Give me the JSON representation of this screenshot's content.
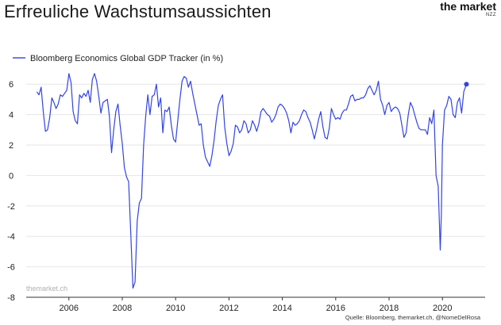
{
  "title": "Erfreuliche Wachstumsaussichten",
  "logo": {
    "main": "the market",
    "sub": "NZZ"
  },
  "watermark": "themarket.ch",
  "source": "Quelle: Bloomberg, themarket.ch, @NomeDelRosa",
  "colors": {
    "line": "#3344e0",
    "grid": "#e6e6e6",
    "axis": "#333333"
  },
  "chart_data": {
    "type": "line",
    "title": "Erfreuliche Wachstumsaussichten",
    "xlabel": "",
    "ylabel": "",
    "legend": {
      "placement": "top-left"
    },
    "grid": true,
    "xlim": [
      2004.4,
      2021.6
    ],
    "ylim": [
      -8,
      7
    ],
    "xticks": [
      2006,
      2008,
      2010,
      2012,
      2014,
      2016,
      2018,
      2020
    ],
    "xtick_labels": [
      "2006",
      "2008",
      "2010",
      "2012",
      "2014",
      "2016",
      "2018",
      "2020"
    ],
    "yticks": [
      -8,
      -6,
      -4,
      -2,
      0,
      2,
      4,
      6
    ],
    "ytick_labels": [
      "-8",
      "-6",
      "-4",
      "-2",
      "0",
      "2",
      "4",
      "6"
    ],
    "series": [
      {
        "name": "Bloomberg Economics Global GDP Tracker (in %)",
        "points": [
          [
            2004.8,
            5.5
          ],
          [
            2004.88,
            5.3
          ],
          [
            2004.96,
            5.8
          ],
          [
            2005.04,
            4.2
          ],
          [
            2005.12,
            2.9
          ],
          [
            2005.2,
            3.0
          ],
          [
            2005.28,
            3.8
          ],
          [
            2005.36,
            5.1
          ],
          [
            2005.44,
            4.8
          ],
          [
            2005.52,
            4.4
          ],
          [
            2005.6,
            4.7
          ],
          [
            2005.68,
            5.3
          ],
          [
            2005.76,
            5.2
          ],
          [
            2005.84,
            5.4
          ],
          [
            2005.92,
            5.6
          ],
          [
            2006.0,
            6.7
          ],
          [
            2006.08,
            6.1
          ],
          [
            2006.16,
            4.2
          ],
          [
            2006.24,
            3.6
          ],
          [
            2006.32,
            3.4
          ],
          [
            2006.4,
            5.3
          ],
          [
            2006.48,
            5.1
          ],
          [
            2006.56,
            5.4
          ],
          [
            2006.64,
            5.2
          ],
          [
            2006.72,
            5.6
          ],
          [
            2006.8,
            4.8
          ],
          [
            2006.88,
            6.3
          ],
          [
            2006.96,
            6.7
          ],
          [
            2007.04,
            6.2
          ],
          [
            2007.12,
            5.2
          ],
          [
            2007.2,
            4.1
          ],
          [
            2007.28,
            4.8
          ],
          [
            2007.36,
            4.9
          ],
          [
            2007.44,
            5.0
          ],
          [
            2007.52,
            3.9
          ],
          [
            2007.6,
            1.5
          ],
          [
            2007.68,
            3.0
          ],
          [
            2007.76,
            4.2
          ],
          [
            2007.84,
            4.7
          ],
          [
            2007.92,
            3.3
          ],
          [
            2008.0,
            2.1
          ],
          [
            2008.08,
            0.5
          ],
          [
            2008.16,
            -0.1
          ],
          [
            2008.24,
            -0.4
          ],
          [
            2008.32,
            -3.8
          ],
          [
            2008.4,
            -7.4
          ],
          [
            2008.48,
            -7.0
          ],
          [
            2008.56,
            -3.0
          ],
          [
            2008.64,
            -1.8
          ],
          [
            2008.72,
            -1.5
          ],
          [
            2008.8,
            2.0
          ],
          [
            2008.88,
            3.9
          ],
          [
            2008.96,
            5.3
          ],
          [
            2009.04,
            4.0
          ],
          [
            2009.12,
            5.2
          ],
          [
            2009.2,
            5.3
          ],
          [
            2009.28,
            6.0
          ],
          [
            2009.36,
            4.5
          ],
          [
            2009.44,
            5.1
          ],
          [
            2009.52,
            2.8
          ],
          [
            2009.6,
            4.3
          ],
          [
            2009.68,
            4.2
          ],
          [
            2009.76,
            4.5
          ],
          [
            2009.84,
            3.3
          ],
          [
            2009.92,
            2.4
          ],
          [
            2010.0,
            2.2
          ],
          [
            2010.08,
            3.6
          ],
          [
            2010.16,
            5.0
          ],
          [
            2010.24,
            6.2
          ],
          [
            2010.32,
            6.5
          ],
          [
            2010.4,
            6.4
          ],
          [
            2010.48,
            5.8
          ],
          [
            2010.56,
            6.2
          ],
          [
            2010.64,
            5.4
          ],
          [
            2010.72,
            4.7
          ],
          [
            2010.8,
            4.0
          ],
          [
            2010.88,
            3.3
          ],
          [
            2010.96,
            3.4
          ],
          [
            2011.04,
            2.0
          ],
          [
            2011.12,
            1.2
          ],
          [
            2011.2,
            0.9
          ],
          [
            2011.28,
            0.6
          ],
          [
            2011.36,
            1.3
          ],
          [
            2011.44,
            2.3
          ],
          [
            2011.52,
            3.6
          ],
          [
            2011.6,
            4.6
          ],
          [
            2011.68,
            5.0
          ],
          [
            2011.76,
            5.3
          ],
          [
            2011.84,
            3.2
          ],
          [
            2011.92,
            2.1
          ],
          [
            2012.0,
            1.3
          ],
          [
            2012.08,
            1.6
          ],
          [
            2012.16,
            2.1
          ],
          [
            2012.24,
            3.3
          ],
          [
            2012.32,
            3.2
          ],
          [
            2012.4,
            2.8
          ],
          [
            2012.48,
            3.0
          ],
          [
            2012.56,
            3.6
          ],
          [
            2012.64,
            3.4
          ],
          [
            2012.72,
            2.8
          ],
          [
            2012.8,
            3.0
          ],
          [
            2012.88,
            3.6
          ],
          [
            2012.96,
            3.3
          ],
          [
            2013.04,
            2.9
          ],
          [
            2013.12,
            3.4
          ],
          [
            2013.2,
            4.2
          ],
          [
            2013.28,
            4.4
          ],
          [
            2013.36,
            4.2
          ],
          [
            2013.44,
            4.0
          ],
          [
            2013.52,
            3.9
          ],
          [
            2013.6,
            3.5
          ],
          [
            2013.68,
            3.7
          ],
          [
            2013.76,
            4.0
          ],
          [
            2013.84,
            4.5
          ],
          [
            2013.92,
            4.7
          ],
          [
            2014.0,
            4.6
          ],
          [
            2014.08,
            4.4
          ],
          [
            2014.16,
            4.1
          ],
          [
            2014.24,
            3.6
          ],
          [
            2014.32,
            2.8
          ],
          [
            2014.4,
            3.5
          ],
          [
            2014.48,
            3.3
          ],
          [
            2014.56,
            3.4
          ],
          [
            2014.64,
            3.6
          ],
          [
            2014.72,
            4.0
          ],
          [
            2014.8,
            4.3
          ],
          [
            2014.88,
            4.2
          ],
          [
            2014.96,
            3.8
          ],
          [
            2015.04,
            3.5
          ],
          [
            2015.12,
            3.0
          ],
          [
            2015.2,
            2.4
          ],
          [
            2015.28,
            3.0
          ],
          [
            2015.36,
            3.7
          ],
          [
            2015.44,
            4.2
          ],
          [
            2015.52,
            3.2
          ],
          [
            2015.6,
            2.5
          ],
          [
            2015.68,
            2.4
          ],
          [
            2015.76,
            3.1
          ],
          [
            2015.84,
            4.4
          ],
          [
            2015.92,
            4.0
          ],
          [
            2016.0,
            3.7
          ],
          [
            2016.08,
            3.8
          ],
          [
            2016.16,
            3.7
          ],
          [
            2016.24,
            4.1
          ],
          [
            2016.32,
            4.3
          ],
          [
            2016.4,
            4.3
          ],
          [
            2016.48,
            4.7
          ],
          [
            2016.56,
            5.2
          ],
          [
            2016.64,
            5.3
          ],
          [
            2016.72,
            4.9
          ],
          [
            2016.8,
            5.0
          ],
          [
            2016.88,
            5.0
          ],
          [
            2016.96,
            5.1
          ],
          [
            2017.04,
            5.1
          ],
          [
            2017.12,
            5.3
          ],
          [
            2017.2,
            5.7
          ],
          [
            2017.28,
            5.9
          ],
          [
            2017.36,
            5.6
          ],
          [
            2017.44,
            5.3
          ],
          [
            2017.52,
            5.6
          ],
          [
            2017.6,
            6.2
          ],
          [
            2017.68,
            5.0
          ],
          [
            2017.76,
            4.6
          ],
          [
            2017.84,
            4.0
          ],
          [
            2017.92,
            4.6
          ],
          [
            2018.0,
            4.8
          ],
          [
            2018.08,
            4.2
          ],
          [
            2018.16,
            4.4
          ],
          [
            2018.24,
            4.5
          ],
          [
            2018.32,
            4.4
          ],
          [
            2018.4,
            4.1
          ],
          [
            2018.48,
            3.3
          ],
          [
            2018.56,
            2.5
          ],
          [
            2018.64,
            2.8
          ],
          [
            2018.72,
            4.0
          ],
          [
            2018.8,
            4.8
          ],
          [
            2018.88,
            4.5
          ],
          [
            2018.96,
            4.0
          ],
          [
            2019.04,
            3.5
          ],
          [
            2019.12,
            3.1
          ],
          [
            2019.2,
            3.0
          ],
          [
            2019.28,
            3.0
          ],
          [
            2019.36,
            3.0
          ],
          [
            2019.44,
            2.7
          ],
          [
            2019.52,
            3.8
          ],
          [
            2019.6,
            3.4
          ],
          [
            2019.68,
            4.3
          ],
          [
            2019.76,
            0.0
          ],
          [
            2019.84,
            -0.7
          ],
          [
            2019.92,
            -4.9
          ],
          [
            2019.96,
            -2.5
          ],
          [
            2020.0,
            2.0
          ],
          [
            2020.08,
            4.3
          ],
          [
            2020.16,
            4.6
          ],
          [
            2020.24,
            5.2
          ],
          [
            2020.32,
            5.0
          ],
          [
            2020.4,
            4.0
          ],
          [
            2020.48,
            3.8
          ],
          [
            2020.56,
            4.8
          ],
          [
            2020.64,
            5.1
          ],
          [
            2020.72,
            4.1
          ],
          [
            2020.8,
            5.5
          ],
          [
            2020.9,
            6.0
          ]
        ]
      }
    ]
  }
}
